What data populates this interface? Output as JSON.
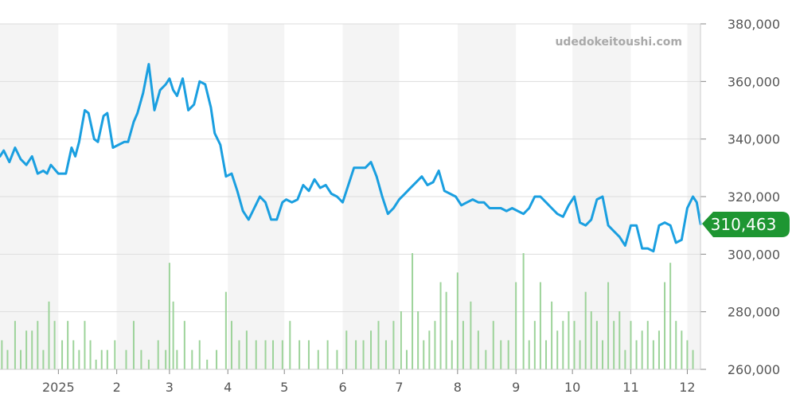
{
  "watermark": "udedokeitoushi.com",
  "current_price_label": "310,463",
  "colors": {
    "line": "#1a9fe0",
    "volume": "#9dd39a",
    "badge": "#1e9632",
    "band": "#f4f4f4",
    "grid": "#dddddd"
  },
  "chart_data": {
    "type": "line",
    "title": "",
    "xlabel": "",
    "ylabel": "",
    "ylim": [
      260000,
      380000
    ],
    "yticks": [
      260000,
      280000,
      300000,
      320000,
      340000,
      360000,
      380000
    ],
    "ytick_labels": [
      "260,000",
      "280,000",
      "300,000",
      "320,000",
      "340,000",
      "360,000",
      "380,000"
    ],
    "y_axis_position": "right",
    "grid": true,
    "xlim": [
      "2024-12-01",
      "2025-12-08"
    ],
    "xticks": [
      "2025-01-01",
      "2025-02-01",
      "2025-03-01",
      "2025-04-01",
      "2025-05-01",
      "2025-06-01",
      "2025-07-01",
      "2025-08-01",
      "2025-09-01",
      "2025-10-01",
      "2025-11-01",
      "2025-12-01"
    ],
    "xtick_labels": [
      "2025",
      "2",
      "3",
      "4",
      "5",
      "6",
      "7",
      "8",
      "9",
      "10",
      "11",
      "12"
    ],
    "last_value": 310463,
    "series": [
      {
        "type": "line",
        "x": [
          "2024-12-01",
          "2024-12-03",
          "2024-12-06",
          "2024-12-09",
          "2024-12-12",
          "2024-12-15",
          "2024-12-18",
          "2024-12-21",
          "2024-12-24",
          "2024-12-26",
          "2024-12-28",
          "2025-01-01",
          "2025-01-05",
          "2025-01-08",
          "2025-01-10",
          "2025-01-12",
          "2025-01-15",
          "2025-01-17",
          "2025-01-20",
          "2025-01-22",
          "2025-01-25",
          "2025-01-27",
          "2025-01-30",
          "2025-02-02",
          "2025-02-05",
          "2025-02-07",
          "2025-02-10",
          "2025-02-12",
          "2025-02-15",
          "2025-02-18",
          "2025-02-21",
          "2025-02-24",
          "2025-02-27",
          "2025-03-01",
          "2025-03-03",
          "2025-03-05",
          "2025-03-08",
          "2025-03-11",
          "2025-03-14",
          "2025-03-17",
          "2025-03-20",
          "2025-03-23",
          "2025-03-25",
          "2025-03-28",
          "2025-03-31",
          "2025-04-03",
          "2025-04-06",
          "2025-04-09",
          "2025-04-12",
          "2025-04-15",
          "2025-04-18",
          "2025-04-21",
          "2025-04-24",
          "2025-04-27",
          "2025-04-30",
          "2025-05-02",
          "2025-05-05",
          "2025-05-08",
          "2025-05-11",
          "2025-05-14",
          "2025-05-17",
          "2025-05-20",
          "2025-05-23",
          "2025-05-26",
          "2025-05-29",
          "2025-06-01",
          "2025-06-04",
          "2025-06-07",
          "2025-06-10",
          "2025-06-13",
          "2025-06-16",
          "2025-06-19",
          "2025-06-22",
          "2025-06-25",
          "2025-06-28",
          "2025-07-01",
          "2025-07-04",
          "2025-07-07",
          "2025-07-10",
          "2025-07-13",
          "2025-07-16",
          "2025-07-19",
          "2025-07-22",
          "2025-07-25",
          "2025-07-28",
          "2025-07-31",
          "2025-08-03",
          "2025-08-06",
          "2025-08-09",
          "2025-08-12",
          "2025-08-15",
          "2025-08-18",
          "2025-08-21",
          "2025-08-24",
          "2025-08-27",
          "2025-08-30",
          "2025-09-02",
          "2025-09-05",
          "2025-09-08",
          "2025-09-11",
          "2025-09-14",
          "2025-09-17",
          "2025-09-20",
          "2025-09-23",
          "2025-09-26",
          "2025-09-29",
          "2025-10-02",
          "2025-10-05",
          "2025-10-08",
          "2025-10-11",
          "2025-10-14",
          "2025-10-17",
          "2025-10-20",
          "2025-10-23",
          "2025-10-26",
          "2025-10-29",
          "2025-11-01",
          "2025-11-04",
          "2025-11-07",
          "2025-11-10",
          "2025-11-13",
          "2025-11-16",
          "2025-11-19",
          "2025-11-22",
          "2025-11-25",
          "2025-11-28",
          "2025-12-01",
          "2025-12-04",
          "2025-12-06",
          "2025-12-08"
        ],
        "y": [
          334000,
          336000,
          332000,
          337000,
          333000,
          331000,
          334000,
          328000,
          329000,
          328000,
          331000,
          328000,
          328000,
          337000,
          334000,
          339000,
          350000,
          349000,
          340000,
          339000,
          348000,
          349000,
          337000,
          338000,
          339000,
          339000,
          346000,
          349000,
          356000,
          366000,
          350000,
          357000,
          359000,
          361000,
          357000,
          355000,
          361000,
          350000,
          352000,
          360000,
          359000,
          351000,
          342000,
          338000,
          327000,
          328000,
          322000,
          315000,
          312000,
          316000,
          320000,
          318000,
          312000,
          312000,
          318000,
          319000,
          318000,
          319000,
          324000,
          322000,
          326000,
          323000,
          324000,
          321000,
          320000,
          318000,
          324000,
          330000,
          330000,
          330000,
          332000,
          327000,
          320000,
          314000,
          316000,
          319000,
          321000,
          323000,
          325000,
          327000,
          324000,
          325000,
          329000,
          322000,
          321000,
          320000,
          317000,
          318000,
          319000,
          318000,
          318000,
          316000,
          316000,
          316000,
          315000,
          316000,
          315000,
          314000,
          316000,
          320000,
          320000,
          318000,
          316000,
          314000,
          313000,
          317000,
          320000,
          311000,
          310000,
          312000,
          319000,
          320000,
          310000,
          308000,
          306000,
          303000,
          310000,
          310000,
          302000,
          302000,
          301000,
          310000,
          311000,
          310000,
          304000,
          305000,
          316000,
          320000,
          318000,
          310463
        ]
      },
      {
        "type": "bar",
        "name": "",
        "x": [
          "2024-12-02",
          "2024-12-05",
          "2024-12-09",
          "2024-12-12",
          "2024-12-15",
          "2024-12-18",
          "2024-12-21",
          "2024-12-24",
          "2024-12-27",
          "2024-12-30",
          "2025-01-03",
          "2025-01-06",
          "2025-01-09",
          "2025-01-12",
          "2025-01-15",
          "2025-01-18",
          "2025-01-21",
          "2025-01-24",
          "2025-01-27",
          "2025-01-31",
          "2025-02-06",
          "2025-02-10",
          "2025-02-14",
          "2025-02-18",
          "2025-02-23",
          "2025-02-27",
          "2025-03-01",
          "2025-03-03",
          "2025-03-05",
          "2025-03-09",
          "2025-03-13",
          "2025-03-17",
          "2025-03-21",
          "2025-03-26",
          "2025-03-31",
          "2025-04-03",
          "2025-04-07",
          "2025-04-11",
          "2025-04-16",
          "2025-04-21",
          "2025-04-25",
          "2025-04-30",
          "2025-05-04",
          "2025-05-09",
          "2025-05-14",
          "2025-05-19",
          "2025-05-24",
          "2025-05-29",
          "2025-06-03",
          "2025-06-08",
          "2025-06-12",
          "2025-06-16",
          "2025-06-20",
          "2025-06-24",
          "2025-06-28",
          "2025-07-02",
          "2025-07-05",
          "2025-07-08",
          "2025-07-11",
          "2025-07-14",
          "2025-07-17",
          "2025-07-20",
          "2025-07-23",
          "2025-07-26",
          "2025-07-29",
          "2025-08-01",
          "2025-08-04",
          "2025-08-08",
          "2025-08-12",
          "2025-08-16",
          "2025-08-20",
          "2025-08-24",
          "2025-08-28",
          "2025-09-01",
          "2025-09-05",
          "2025-09-08",
          "2025-09-11",
          "2025-09-14",
          "2025-09-17",
          "2025-09-20",
          "2025-09-23",
          "2025-09-26",
          "2025-09-29",
          "2025-10-02",
          "2025-10-05",
          "2025-10-08",
          "2025-10-11",
          "2025-10-14",
          "2025-10-17",
          "2025-10-20",
          "2025-10-23",
          "2025-10-26",
          "2025-10-29",
          "2025-11-01",
          "2025-11-04",
          "2025-11-07",
          "2025-11-10",
          "2025-11-13",
          "2025-11-16",
          "2025-11-19",
          "2025-11-22",
          "2025-11-25",
          "2025-11-28",
          "2025-12-01",
          "2025-12-04"
        ],
        "values": [
          15,
          10,
          25,
          10,
          20,
          20,
          25,
          10,
          35,
          25,
          15,
          25,
          15,
          10,
          25,
          15,
          5,
          10,
          10,
          15,
          10,
          25,
          10,
          5,
          15,
          10,
          55,
          35,
          10,
          25,
          10,
          15,
          5,
          10,
          40,
          25,
          15,
          20,
          15,
          15,
          15,
          15,
          25,
          15,
          15,
          10,
          15,
          10,
          20,
          15,
          15,
          20,
          25,
          15,
          25,
          30,
          10,
          60,
          30,
          15,
          20,
          25,
          45,
          40,
          15,
          50,
          25,
          35,
          20,
          10,
          25,
          15,
          15,
          45,
          60,
          15,
          25,
          45,
          15,
          35,
          20,
          25,
          30,
          25,
          15,
          40,
          30,
          25,
          15,
          45,
          25,
          30,
          10,
          25,
          15,
          20,
          25,
          15,
          20,
          45,
          55,
          25,
          20,
          15,
          10
        ]
      }
    ]
  }
}
